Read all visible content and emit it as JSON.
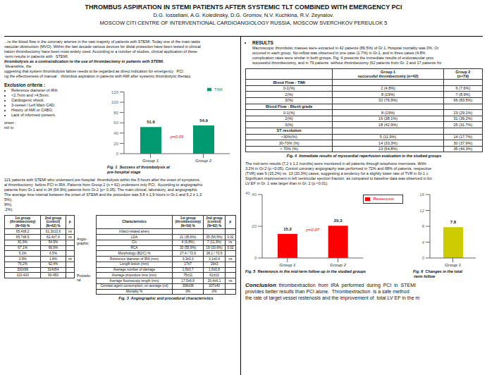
{
  "chart_data": [
    {
      "type": "text",
      "title": "THROMBUS ASPIRATION IN STEMI PATIENTS AFTER SYSTEMIC TLT COMBINED WITH EMERGENCY PCI",
      "subtitle": [
        "D.G. Iosseliani, A.G. Koledinsky, D.G. Gromov, N.V. Kuchkina, R.V. Zeynalov.",
        "MOSCOW CITI CENTRE OF INTERVENTIONAL CARDIOANGIOLOGY RUSSIA, MOSCOW SVERCHKOV PEREULOK 5"
      ]
    },
    {
      "type": "text",
      "annotations": [
        "...re the blood flow in the coronary arteries in the vast majority of patients with STEMI. Today one of the main tasks",
        "vascular obstruction (MVO). Within the last decade various devices for distal protection have been tested in clinical",
        "iration thrombectomy have been most widely used. According to a number of studies, clinical application of these",
        "-term results in patients with   STEMI.",
        "thrombolysis as a contraindication to the use of thrombectomy in patients with STEMI.",
        " Meanwhile, the",
        "uggesting that system thrombolysis failure needs to be regarded as direct indication for emergency   PCI.",
        "ng the effectiveness of manual    thrombus aspiration in patients with AMI after systemic thrombolytic therapy."
      ]
    },
    {
      "type": "text",
      "title": "Exclusion criteria :",
      "annotations": [
        "Reference diameter of IRA:",
        "<2,7mm and >4,5mm;",
        "Cardiogenic shock;",
        "3-vessel / Left Main CAD;",
        "History of AMI or CABG;",
        "Lack of informed consent."
      ]
    },
    {
      "type": "text",
      "annotations": [
        "onset :",
        "ml/ in"
      ]
    },
    {
      "type": "bar",
      "title": "Fig. 1  Success of thrombolysis at\npre-hospital stage",
      "categories": [
        "Group 1",
        "Group 2"
      ],
      "series": [
        {
          "name": "TIMI",
          "color": "#009970",
          "values": [
            51.6,
            54.9
          ]
        }
      ],
      "ylim": [
        0,
        120
      ],
      "yticks": [
        0,
        20,
        40,
        60,
        80,
        100,
        120
      ],
      "data_labels": true,
      "legend": "upper right",
      "annotations": [
        {
          "text": "p=0.05",
          "color": "red"
        }
      ]
    },
    {
      "type": "text",
      "annotations": [
        "121 patients with STEMI who underwent pre-hospital  thrombolysis within the 5 hours after the onset of symptoms.",
        "al thrombectomy  before PCI in IRA. Patients from Group 2 (n = 62) underwent only PCI.  According to angiographic",
        "patients from Gr.1 and in 34 (54.9%) patients from Gr.2 (p> 0,05). The main clinical, laboratory, and angiographic",
        "The average time interval between the onset of STEMI and the procedure was 5,8 ± 1,9 hours in Gr.1 and 5,2 ± 1,3",
        "5%);",
        "9%);",
        ",2%)."
      ]
    },
    {
      "type": "table",
      "headers": [
        "1st group\n(thrombectomy)\n(N=59) %",
        "2nd group\n(control)\n(N=62) %",
        "p"
      ],
      "rows": [
        [
          "65,4±8,2",
          "61,3±10,6",
          "ns"
        ],
        [
          "65,7±8,9",
          "62,4±7,4",
          "ns"
        ],
        [
          "81,9%",
          "54,9%",
          ""
        ],
        [
          "67,1%",
          "66,9%",
          ""
        ],
        [
          "5,1%",
          "6,5%",
          ""
        ],
        [
          "0,9%",
          "1,8%",
          "ns"
        ],
        [
          "76,2%",
          "62,4%",
          ""
        ],
        [
          "330±96",
          "314±54",
          ""
        ],
        [
          "110-420",
          "90-450",
          ""
        ]
      ]
    },
    {
      "type": "table",
      "title": "Fig. 3  Angiographic and procedural characteristics",
      "headers": [
        "Characteristics",
        "1st group\n(thrombectomy)\n(N=59) %",
        "2nd group\n(control)\n(N=62) %",
        "p"
      ],
      "rows": [
        [
          "Infarct-related artery",
          "",
          "",
          ""
        ],
        [
          "LDA",
          "21 (35,6%)",
          "35 (56,5%)",
          "0.02"
        ],
        [
          "CIx",
          "4 (6,8%)",
          "7 (11,3%)",
          "ns"
        ],
        [
          "RCA",
          "33 (55,9%)",
          "19 (30,6%)",
          "0.02"
        ],
        [
          "Morphology (B2/C) %",
          "27,4 / 72,6",
          "28,1 / 70,9",
          ""
        ],
        [
          "Reference diameter of IRA (mm)",
          "3,3±0,3",
          "3,1±0,4",
          "ns"
        ],
        [
          "Length lesion (mm)",
          "17±7",
          "19±3",
          ""
        ],
        [
          "Average number of damage",
          "1,5±0,7",
          "1,6±0,8",
          ""
        ],
        [
          "Average procedure time (min)",
          "75±11",
          "61±10",
          ""
        ],
        [
          "Average fluoroscopy length (min)",
          "17,5±6,8",
          "20,4±6,1",
          "ns"
        ],
        [
          "Contrast agent consumption, on average (ml)",
          "308±38",
          "307±40",
          ""
        ],
        [
          "Mortality %",
          "0%",
          "0%",
          ""
        ]
      ],
      "annotations": [
        "Angio-\ngraphic",
        "Procedu-\nral"
      ]
    },
    {
      "type": "text",
      "title": "RESULTS",
      "annotations": [
        "Macroscopic thrombotic masses were extracted in 42 patients (89.5%) of Gr.1. Hospital mortality was 0%. Or",
        "occured in each group. No-reflow was observed in one case (1.7%) in Gr.1, and in three cases (4.8%",
        "complication rates were similar in both groups. Fig. 4 presents the immediate results of endovascular proc",
        "successful thrombectomy, and in 79 patients  without thrombectomy (62 patients from Gr. 2 and 17 patients fro"
      ]
    },
    {
      "type": "table",
      "title": "Fig. 4  Immediate results of myocardial reperfusion evaluation in the studied groups",
      "headers": [
        "",
        "Group 1\nsuccessful thrombectomy (n=42)",
        "Group 2\n(n=79)"
      ],
      "rows": [
        [
          "Blood Flow : TIMI",
          "",
          ""
        ],
        [
          "0-1(%)",
          "2 (4,8%)",
          "6 (7,6%)"
        ],
        [
          "2(%)",
          "8 (19%)",
          "7 (8,9%)"
        ],
        [
          "3(%)",
          "32 (76,9%)",
          "66 (83,5%)"
        ],
        [
          "Blood Flow : Blush grade",
          "",
          ""
        ],
        [
          "0-1(%)",
          "8 (19%)",
          "23 (29,1%)"
        ],
        [
          "2(%)",
          "16 (38,1%)",
          "31 (39,2%)"
        ],
        [
          "3(%)",
          "18 (42,9%)",
          "25 (31,7%)"
        ],
        [
          "ST resolution",
          "",
          ""
        ],
        [
          "<30%(%)",
          "5 (11,9%)",
          "14 (17,7%)"
        ],
        [
          "30-70% (%)",
          "14 (33,3%)",
          "30 (37,9%)"
        ],
        [
          "> 70% (%)",
          "23 (54,8%)",
          "35 (44,3%)"
        ]
      ]
    },
    {
      "type": "text",
      "annotations": [
        "The mid-term results (7,2 ± 1,2 months) were monitored in all patients through telephone interviews. Withi",
        "3,2% in Gr.2 (p <0.05). Control coronary angiography was performed in 72% and 68% of patients, respective",
        "(TVR) was 9 (15,2%) vs. 13 (20,3%) cases, suggesting a tendency for a slightly lower rate of TVR in Gr.1 c",
        "Significant improvement in left ventricular ejection fraction  as compared to baseline data was observed in bo",
        "LV EF in Gr. 1 was larger than in Gr. 2 (p <0.01)."
      ]
    },
    {
      "type": "bar",
      "title": "Fig. 5  Restenosis in the mid-term follow up in the studied groups",
      "categories": [
        "Group 1",
        "Group 2"
      ],
      "series": [
        {
          "name": "Restenosis",
          "color": "#ff0000",
          "values": [
            15.2,
            20.3
          ]
        }
      ],
      "ylim": [
        0,
        40
      ],
      "yticks": [
        0,
        20,
        40
      ],
      "data_labels": true,
      "legend": "right",
      "annotations": [
        {
          "text": "p=0.07",
          "color": "red"
        },
        {
          "text": "40"
        }
      ]
    },
    {
      "type": "bar",
      "title": "Fig. 6  Changes in the total\n-term follow",
      "categories": [
        "Group 1"
      ],
      "values": [
        7.8
      ],
      "color": "#cccc00",
      "ylim": [
        0,
        16
      ],
      "yticks": [
        0,
        4,
        8,
        12,
        16
      ],
      "data_labels": true
    },
    {
      "type": "text",
      "title": "Conclusion",
      "annotations": [
        ": thrombextraction  from  IRA  performed  during  PCI  in  STEMI",
        "provides better results than PCI alone.  Thrombextraction  is a safe method",
        "the rate of target vessel restenosis and the improvement of  total LV EF in the m"
      ]
    }
  ]
}
